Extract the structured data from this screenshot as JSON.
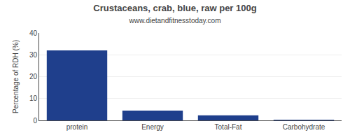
{
  "chart_data": {
    "type": "bar",
    "title": "Crustaceans, crab, blue, raw per 100g",
    "subtitle": "www.dietandfitnesstoday.com",
    "categories": [
      "protein",
      "Energy",
      "Total-Fat",
      "Carbohydrate"
    ],
    "values": [
      32,
      4.5,
      2.3,
      0.1
    ],
    "color": "#1F3F8C",
    "ylabel": "Percentage of RDH (%)",
    "ylim": [
      0,
      40
    ],
    "yticks": [
      0,
      10,
      20,
      30,
      40
    ],
    "grid": true
  }
}
